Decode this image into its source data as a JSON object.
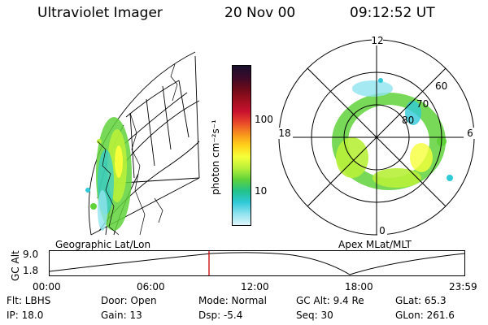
{
  "header": {
    "instrument": "Ultraviolet Imager",
    "date": "20 Nov 00",
    "time": "09:12:52 UT"
  },
  "colorbar": {
    "unit_label": "photon cm⁻²s⁻¹",
    "ticks": [
      "100",
      "10"
    ],
    "colors": [
      "#1a0f2e",
      "#3a0a2a",
      "#6b0a1a",
      "#9c0f1e",
      "#c8102e",
      "#e8472a",
      "#f7921e",
      "#ffd21a",
      "#f5ff3a",
      "#b8f03a",
      "#5fd23a",
      "#22c28a",
      "#2fc9d8",
      "#8fe3ef",
      "#dff6fb"
    ]
  },
  "polar_plot": {
    "mlt_labels": {
      "top": "12",
      "left": "18",
      "right": "6",
      "bottom": "0"
    },
    "lat_labels": [
      "60",
      "70",
      "80"
    ]
  },
  "panel_titles": {
    "left": "Geographic Lat/Lon",
    "right": "Apex MLat/MLT"
  },
  "altitude_strip": {
    "ylabel": "GC Alt",
    "ymax_label": "9.0",
    "ymin_label": "1.8",
    "xticks": [
      "00:00",
      "06:00",
      "12:00",
      "18:00",
      "23:59"
    ],
    "marker_color": "#cc0000"
  },
  "footer": {
    "flt": "Flt: LBHS",
    "door": "Door: Open",
    "mode": "Mode: Normal",
    "gc_alt": "GC Alt: 9.4 Re",
    "glat": "GLat:  65.3",
    "ip": "IP: 18.0",
    "gain": "Gain: 13",
    "dsp": "Dsp:    -5.4",
    "seq": "Seq: 30",
    "glon": "GLon: 261.6"
  }
}
